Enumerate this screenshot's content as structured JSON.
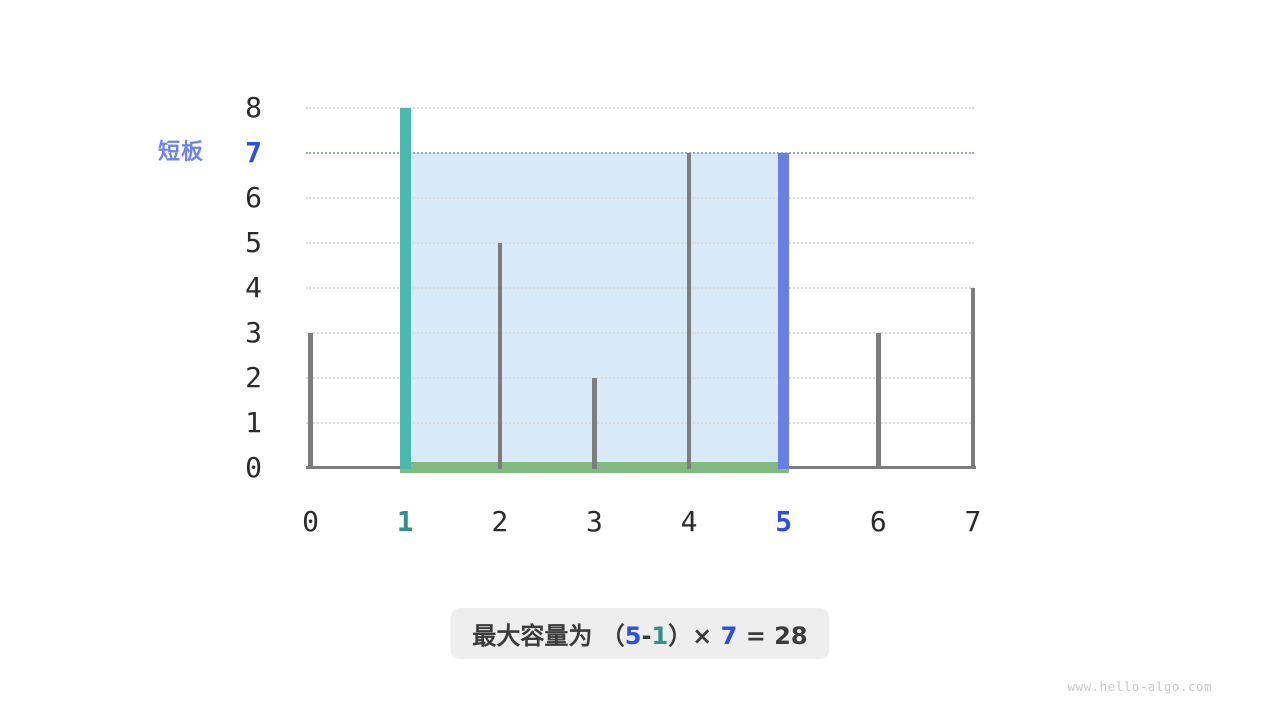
{
  "annotation": {
    "short_board_label": "短板"
  },
  "formula": {
    "prefix": "最大容量为 （",
    "right_index": "5",
    "minus": "-",
    "left_index": "1",
    "mid": "）× ",
    "water_height": "7",
    "equals": " = ",
    "result": "28"
  },
  "watermark": "www.hello-algo.com",
  "colors": {
    "bar_gray": "#7d7d7d",
    "bar_left_teal": "#4bb8ae",
    "bar_right_blue": "#6880e3",
    "water_fill": "#d8e9f8",
    "base_green": "#82bb80",
    "gridline": "#dcdcdc",
    "waterline_blue": "#8fa3ee",
    "axis_gray": "#7d7d7d",
    "tick_blue": "#2b50e0",
    "tick_teal": "#2f9187",
    "label_blue": "#6d85ea",
    "text_dark": "#3b3b3b",
    "tick_dark": "#2b2b2b",
    "formula_bg": "#eeeeee",
    "watermark_gray": "#c9c9c9"
  },
  "chart_data": {
    "type": "bar",
    "title": "",
    "xlabel": "",
    "ylabel": "",
    "x": [
      0,
      1,
      2,
      3,
      4,
      5,
      6,
      7
    ],
    "heights": [
      3,
      8,
      5,
      2,
      7,
      7,
      3,
      4
    ],
    "yticks": [
      0,
      1,
      2,
      3,
      4,
      5,
      6,
      7,
      8
    ],
    "ylim": [
      0,
      8
    ],
    "xlim": [
      0,
      7
    ],
    "grid": true,
    "left_pointer_x": 1,
    "right_pointer_x": 5,
    "water_level": 7,
    "capacity": 28
  }
}
